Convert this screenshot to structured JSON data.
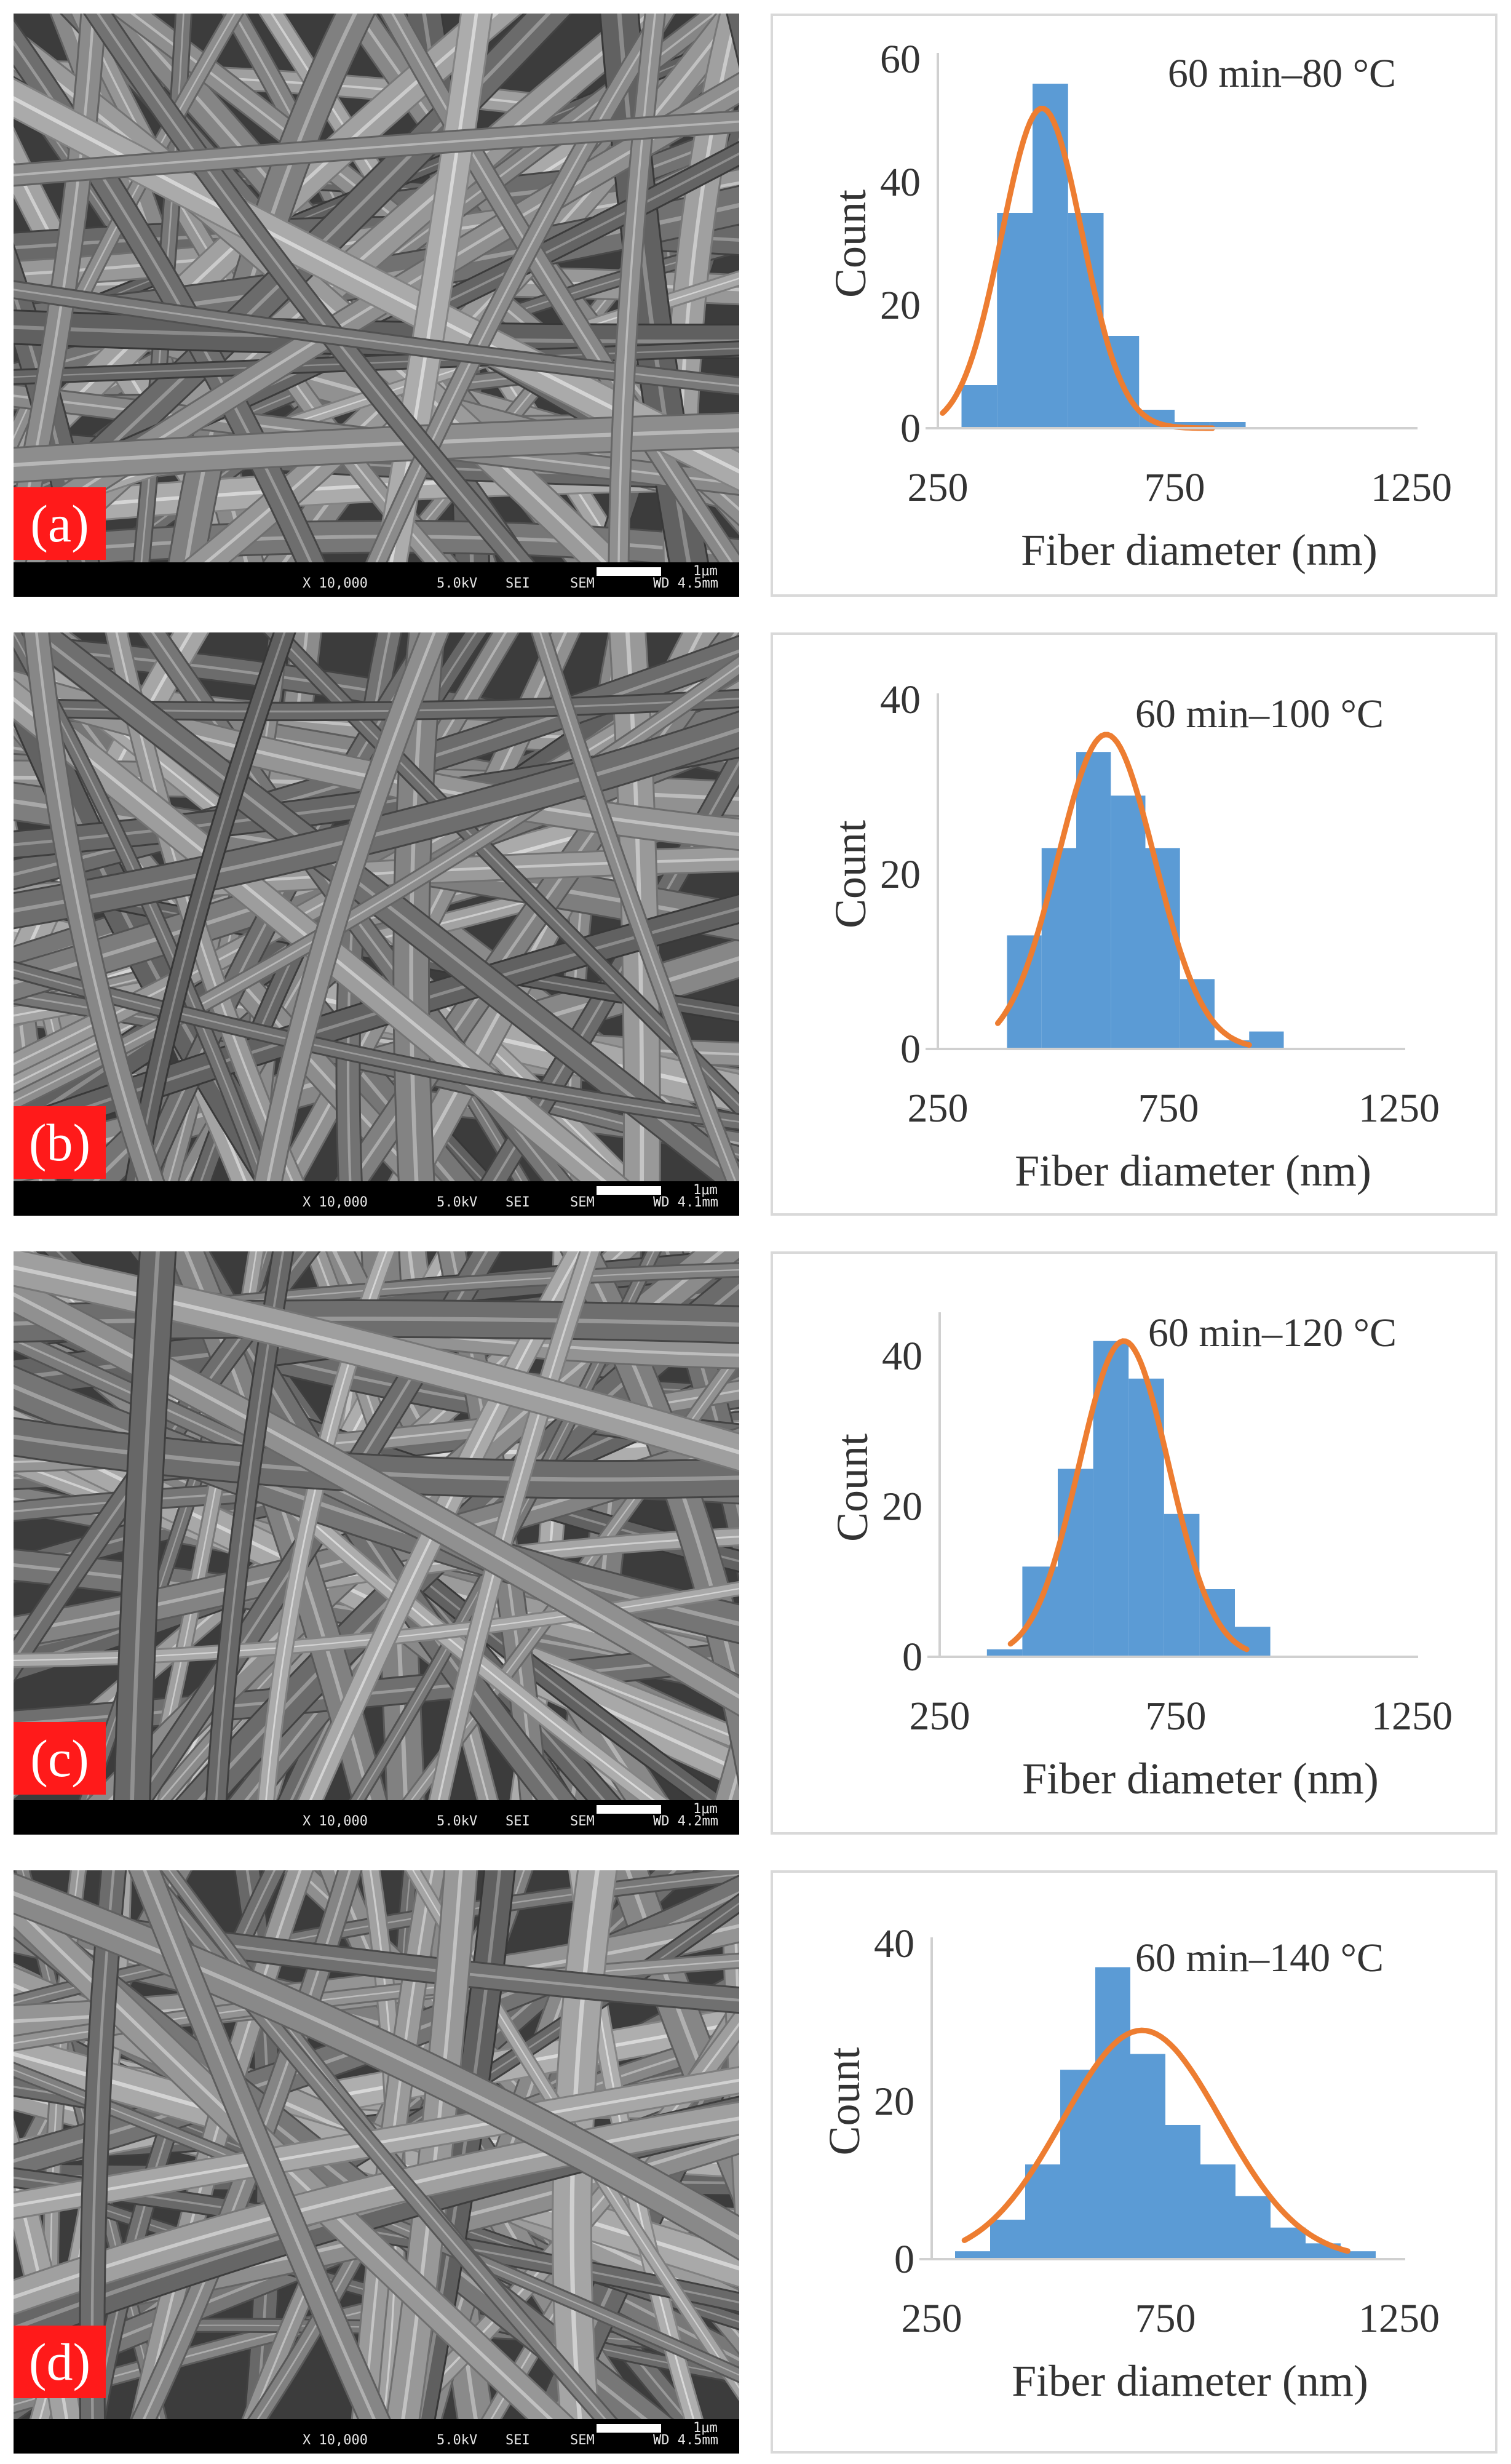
{
  "panels": [
    {
      "label": "(a)",
      "sem_bar": {
        "magnification": "X 10,000",
        "voltage": "5.0kV",
        "detector": "SEI",
        "mode": "SEM",
        "scale": "1μm",
        "wd": "WD 4.5mm"
      },
      "chart_data": {
        "type": "bar",
        "title": "60 min–80 °C",
        "xlabel": "Fiber diameter (nm)",
        "ylabel": "Count",
        "xticks": [
          250,
          750,
          1250
        ],
        "yticks": [
          0,
          20,
          40,
          60
        ],
        "xlim": [
          250,
          1250
        ],
        "ylim": [
          0,
          60
        ],
        "bins": [
          {
            "x0": 300,
            "x1": 375,
            "value": 7
          },
          {
            "x0": 375,
            "x1": 450,
            "value": 35
          },
          {
            "x0": 450,
            "x1": 525,
            "value": 56
          },
          {
            "x0": 525,
            "x1": 600,
            "value": 35
          },
          {
            "x0": 600,
            "x1": 675,
            "value": 15
          },
          {
            "x0": 675,
            "x1": 750,
            "value": 3
          },
          {
            "x0": 750,
            "x1": 825,
            "value": 1
          },
          {
            "x0": 825,
            "x1": 900,
            "value": 1
          }
        ],
        "fit": {
          "mean": 470,
          "sd": 85,
          "peak": 52,
          "from": 260,
          "to": 830
        },
        "colors": {
          "bars": "#5b9bd5",
          "fit": "#ed7d31"
        }
      }
    },
    {
      "label": "(b)",
      "sem_bar": {
        "magnification": "X 10,000",
        "voltage": "5.0kV",
        "detector": "SEI",
        "mode": "SEM",
        "scale": "1μm",
        "wd": "WD 4.1mm"
      },
      "chart_data": {
        "type": "bar",
        "title": "60 min–100 °C",
        "xlabel": "Fiber diameter (nm)",
        "ylabel": "Count",
        "xticks": [
          250,
          750,
          1250
        ],
        "yticks": [
          0,
          20,
          40
        ],
        "xlim": [
          250,
          1250
        ],
        "ylim": [
          0,
          40
        ],
        "bins": [
          {
            "x0": 400,
            "x1": 475,
            "value": 13
          },
          {
            "x0": 475,
            "x1": 550,
            "value": 23
          },
          {
            "x0": 550,
            "x1": 625,
            "value": 34
          },
          {
            "x0": 625,
            "x1": 700,
            "value": 29
          },
          {
            "x0": 700,
            "x1": 775,
            "value": 23
          },
          {
            "x0": 775,
            "x1": 850,
            "value": 8
          },
          {
            "x0": 850,
            "x1": 925,
            "value": 1
          },
          {
            "x0": 925,
            "x1": 1000,
            "value": 2
          }
        ],
        "fit": {
          "mean": 615,
          "sd": 105,
          "peak": 36,
          "from": 380,
          "to": 925
        },
        "colors": {
          "bars": "#5b9bd5",
          "fit": "#ed7d31"
        }
      }
    },
    {
      "label": "(c)",
      "sem_bar": {
        "magnification": "X 10,000",
        "voltage": "5.0kV",
        "detector": "SEI",
        "mode": "SEM",
        "scale": "1μm",
        "wd": "WD 4.2mm"
      },
      "chart_data": {
        "type": "bar",
        "title": "60 min–120 °C",
        "xlabel": "Fiber diameter (nm)",
        "ylabel": "Count",
        "xticks": [
          250,
          750,
          1250
        ],
        "yticks": [
          0,
          20,
          40
        ],
        "xlim": [
          250,
          1250
        ],
        "ylim": [
          0,
          45
        ],
        "bins": [
          {
            "x0": 350,
            "x1": 425,
            "value": 1
          },
          {
            "x0": 425,
            "x1": 500,
            "value": 12
          },
          {
            "x0": 500,
            "x1": 575,
            "value": 25
          },
          {
            "x0": 575,
            "x1": 650,
            "value": 42
          },
          {
            "x0": 650,
            "x1": 725,
            "value": 37
          },
          {
            "x0": 725,
            "x1": 800,
            "value": 19
          },
          {
            "x0": 800,
            "x1": 875,
            "value": 9
          },
          {
            "x0": 875,
            "x1": 950,
            "value": 4
          }
        ],
        "fit": {
          "mean": 640,
          "sd": 95,
          "peak": 42,
          "from": 400,
          "to": 900
        },
        "colors": {
          "bars": "#5b9bd5",
          "fit": "#ed7d31"
        }
      }
    },
    {
      "label": "(d)",
      "sem_bar": {
        "magnification": "X 10,000",
        "voltage": "5.0kV",
        "detector": "SEI",
        "mode": "SEM",
        "scale": "1μm",
        "wd": "WD 4.5mm"
      },
      "chart_data": {
        "type": "bar",
        "title": "60 min–140 °C",
        "xlabel": "Fiber diameter (nm)",
        "ylabel": "Count",
        "xticks": [
          250,
          750,
          1250
        ],
        "yticks": [
          0,
          20,
          40
        ],
        "xlim": [
          250,
          1250
        ],
        "ylim": [
          0,
          40
        ],
        "bins": [
          {
            "x0": 300,
            "x1": 375,
            "value": 1
          },
          {
            "x0": 375,
            "x1": 450,
            "value": 5
          },
          {
            "x0": 450,
            "x1": 525,
            "value": 12
          },
          {
            "x0": 525,
            "x1": 600,
            "value": 24
          },
          {
            "x0": 600,
            "x1": 675,
            "value": 37
          },
          {
            "x0": 675,
            "x1": 750,
            "value": 26
          },
          {
            "x0": 750,
            "x1": 825,
            "value": 17
          },
          {
            "x0": 825,
            "x1": 900,
            "value": 12
          },
          {
            "x0": 900,
            "x1": 975,
            "value": 8
          },
          {
            "x0": 975,
            "x1": 1050,
            "value": 4
          },
          {
            "x0": 1050,
            "x1": 1125,
            "value": 2
          },
          {
            "x0": 1125,
            "x1": 1200,
            "value": 1
          }
        ],
        "fit": {
          "mean": 700,
          "sd": 170,
          "peak": 29,
          "from": 320,
          "to": 1140
        },
        "colors": {
          "bars": "#5b9bd5",
          "fit": "#ed7d31"
        }
      }
    }
  ]
}
